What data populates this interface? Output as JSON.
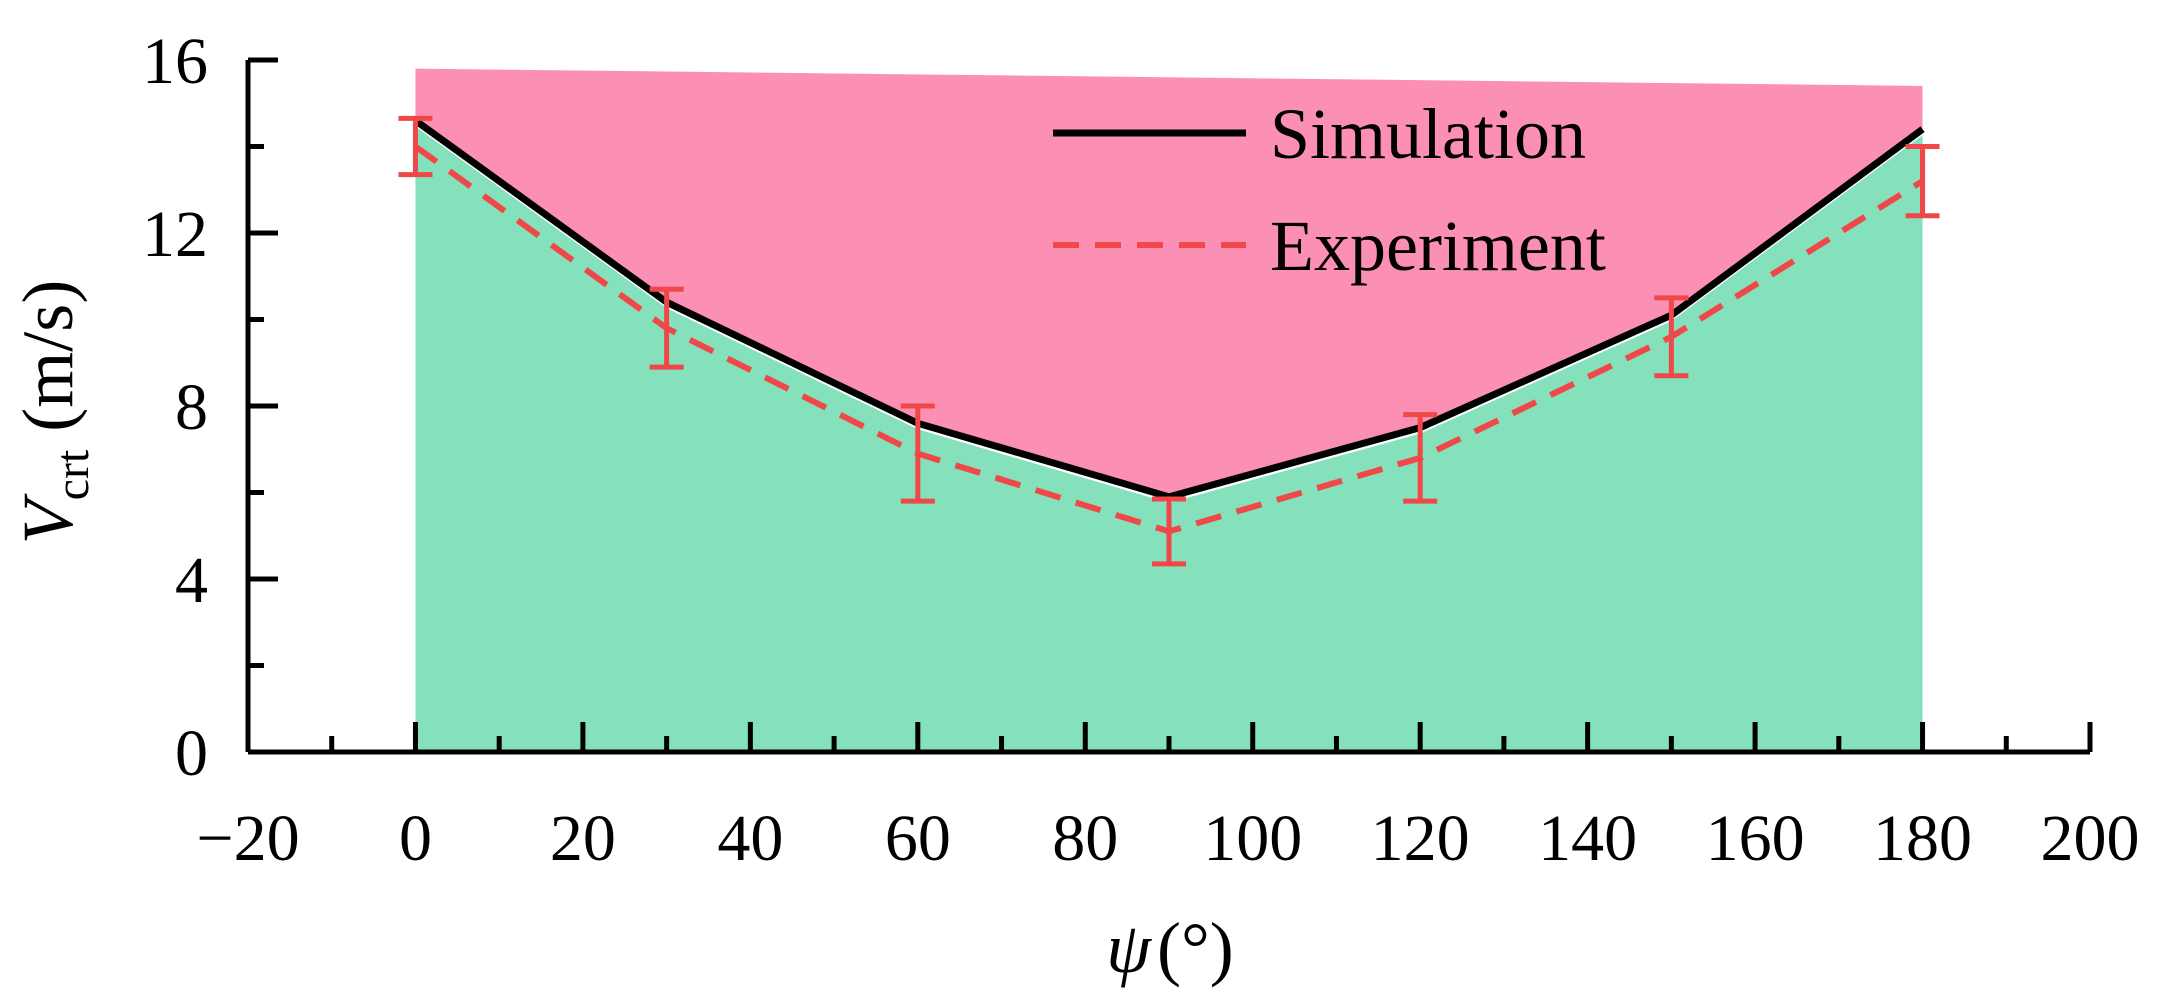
{
  "chart_data": {
    "type": "line",
    "x": [
      0,
      30,
      60,
      90,
      120,
      150,
      180
    ],
    "series": [
      {
        "name": "Simulation",
        "values": [
          14.6,
          10.4,
          7.6,
          5.9,
          7.5,
          10.1,
          14.4
        ],
        "color": "#000000",
        "style": "solid"
      },
      {
        "name": "Experiment",
        "values": [
          14.0,
          9.8,
          6.9,
          5.1,
          6.8,
          9.6,
          13.2
        ],
        "color": "#f04848",
        "style": "dashed",
        "error": [
          0.65,
          0.9,
          1.1,
          0.75,
          1.0,
          0.9,
          0.8
        ]
      }
    ],
    "regions": [
      {
        "name": "upper-region",
        "color": "#fc8fb4",
        "x_range": [
          0,
          180
        ],
        "top": [
          15.8,
          15.4
        ],
        "bottom": "Simulation"
      },
      {
        "name": "lower-region",
        "color": "#84e1bb",
        "x_range": [
          0,
          180
        ],
        "top": "Simulation",
        "bottom": 0
      }
    ],
    "xlim": [
      -20,
      200
    ],
    "ylim": [
      0,
      16
    ],
    "xticks": [
      -20,
      0,
      20,
      40,
      60,
      80,
      100,
      120,
      140,
      160,
      180,
      200
    ],
    "xtick_labels": [
      "−20",
      "0",
      "20",
      "40",
      "60",
      "80",
      "100",
      "120",
      "140",
      "160",
      "180",
      "200"
    ],
    "yticks": [
      0,
      4,
      8,
      12,
      16
    ],
    "ytick_labels": [
      "0",
      "4",
      "8",
      "12",
      "16"
    ],
    "xlabel": {
      "main": "ψ",
      "unit": "(°)"
    },
    "ylabel": {
      "main": "V",
      "sub": "crt",
      "unit": "(m/s)"
    },
    "legend": {
      "position": "top-right",
      "entries": [
        "Simulation",
        "Experiment"
      ]
    }
  }
}
